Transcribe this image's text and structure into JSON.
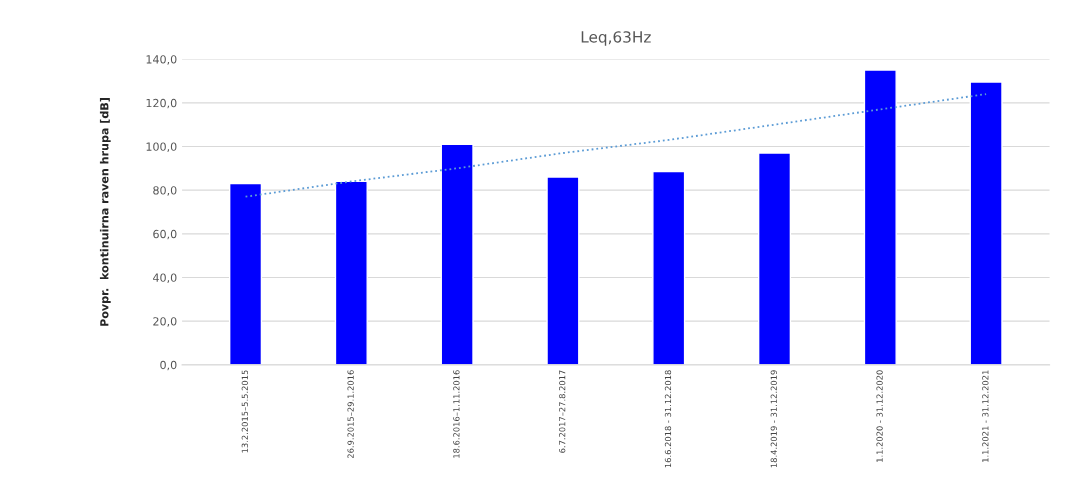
{
  "chart_data": {
    "type": "bar",
    "title": "Leq,63Hz",
    "ylabel": "Povpr.  kontinuirna raven hrupa [dB]",
    "categories": [
      "13.2.2015–5.5.2015",
      "26.9.2015–29.1.2016",
      "18.6.2016–1.11.2016",
      "6.7.2017–27.8.2017",
      "16.6.2018 - 31.12.2018",
      "18.4.2019 - 31.12.2019",
      "1.1.2020 - 31.12.2020",
      "1.1.2021 - 31.12.2021"
    ],
    "series": [
      {
        "color": "#0000ff",
        "values": [
          83,
          84,
          101,
          86,
          88.5,
          97,
          135,
          129.5
        ]
      },
      {
        "type": "line",
        "color": "#5b9bd5",
        "line_style": "dotted",
        "values": [
          77,
          84,
          90,
          97,
          103,
          110,
          117,
          124
        ]
      }
    ],
    "ylim": [
      0,
      140
    ],
    "yticks": [
      {
        "value": 0,
        "label": "0,0"
      },
      {
        "value": 20,
        "label": "20,0"
      },
      {
        "value": 40,
        "label": "40,0"
      },
      {
        "value": 60,
        "label": "60,0"
      },
      {
        "value": 80,
        "label": "80,0"
      },
      {
        "value": 100,
        "label": "100,0"
      },
      {
        "value": 120,
        "label": "120,0"
      },
      {
        "value": 140,
        "label": "140,0"
      }
    ],
    "grid": "y"
  }
}
